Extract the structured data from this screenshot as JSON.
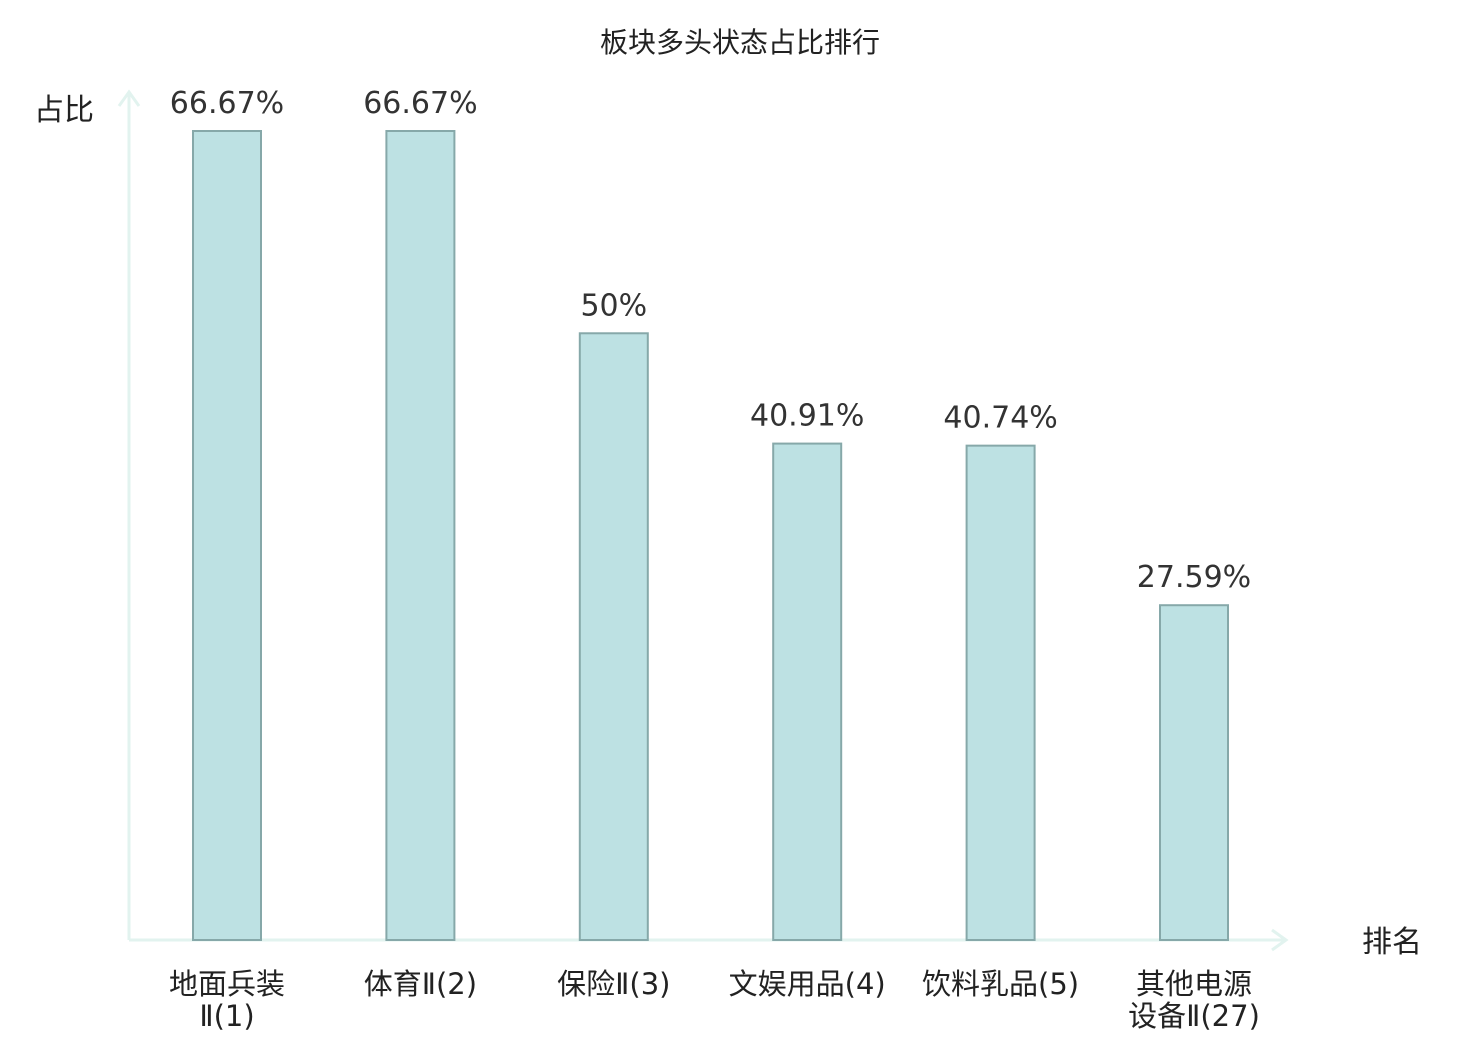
{
  "chart_data": {
    "type": "bar",
    "title": "板块多头状态占比排行",
    "xlabel": "排名",
    "ylabel": "占比",
    "ylim": [
      0,
      70
    ],
    "grid": false,
    "legend": "none",
    "categories": [
      [
        "地面兵装",
        "Ⅱ(1)"
      ],
      [
        "体育Ⅱ(2)"
      ],
      [
        "保险Ⅱ(3)"
      ],
      [
        "文娱用品(4)"
      ],
      [
        "饮料乳品(5)"
      ],
      [
        "其他电源",
        "设备Ⅱ(27)"
      ]
    ],
    "values": [
      66.67,
      66.67,
      50,
      40.91,
      40.74,
      27.59
    ],
    "value_labels": [
      "66.67%",
      "66.67%",
      "50%",
      "40.91%",
      "40.74%",
      "27.59%"
    ],
    "highlight_index": 5,
    "colors": {
      "bar_fill": "#bde1e3",
      "bar_stroke": "#86a8a9",
      "axis": "#e2f3ef",
      "text": "#222222",
      "value_text": "#333333",
      "highlight_text": "#e0191b"
    }
  }
}
